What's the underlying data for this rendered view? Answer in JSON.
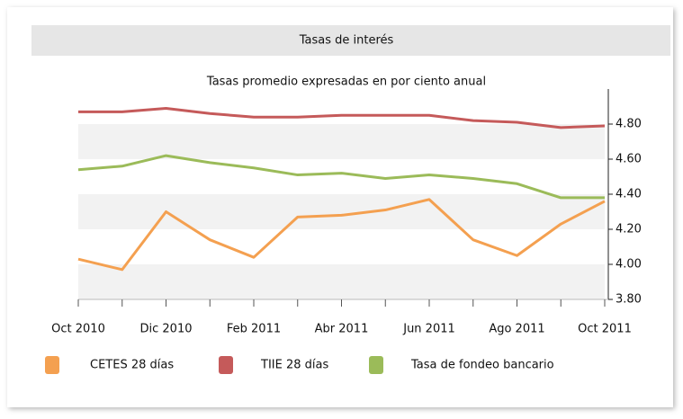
{
  "chart_data": {
    "type": "line",
    "title": "Tasas de interés",
    "subtitle": "Tasas promedio expresadas en por ciento anual",
    "categories": [
      "Oct 2010",
      null,
      "Dic 2010",
      null,
      "Feb 2011",
      null,
      "Abr 2011",
      null,
      "Jun 2011",
      null,
      "Ago 2011",
      null,
      "Oct 2011"
    ],
    "series": [
      {
        "name": "CETES 28 días",
        "color": "#f4a050",
        "values": [
          4.03,
          3.97,
          4.3,
          4.14,
          4.04,
          4.27,
          4.28,
          4.31,
          4.37,
          4.14,
          4.05,
          4.23,
          4.36
        ]
      },
      {
        "name": "TIIE 28 días",
        "color": "#c55a5a",
        "values": [
          4.87,
          4.87,
          4.89,
          4.86,
          4.84,
          4.84,
          4.85,
          4.85,
          4.85,
          4.82,
          4.81,
          4.78,
          4.79
        ]
      },
      {
        "name": "Tasa de fondeo bancario",
        "color": "#9bbb59",
        "values": [
          4.54,
          4.56,
          4.62,
          4.58,
          4.55,
          4.51,
          4.52,
          4.49,
          4.51,
          4.49,
          4.46,
          4.38,
          4.38
        ]
      }
    ],
    "ylim": [
      3.8,
      5.0
    ],
    "yticks": [
      {
        "value": 3.8,
        "label": "3.80"
      },
      {
        "value": 4.0,
        "label": "4.00"
      },
      {
        "value": 4.2,
        "label": "4.20"
      },
      {
        "value": 4.4,
        "label": "4.40"
      },
      {
        "value": 4.6,
        "label": "4.60"
      },
      {
        "value": 4.8,
        "label": "4.80"
      }
    ],
    "y_axis_side": "right"
  }
}
